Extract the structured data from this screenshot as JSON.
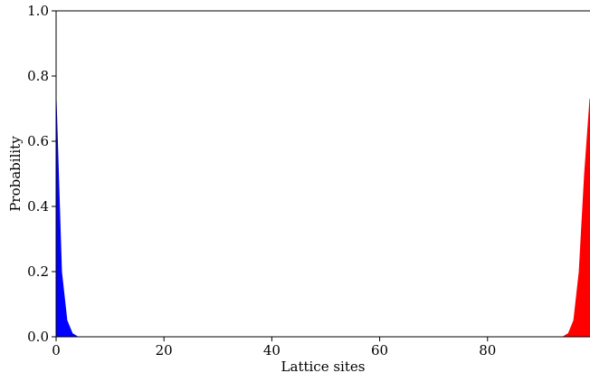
{
  "chart_data": {
    "type": "area",
    "title": "",
    "xlabel": "Lattice sites",
    "ylabel": "Probability",
    "xlim": [
      0,
      99
    ],
    "ylim": [
      0,
      1.0
    ],
    "x_ticks": [
      0,
      20,
      40,
      60,
      80
    ],
    "x_tick_labels": [
      "0",
      "20",
      "40",
      "60",
      "80"
    ],
    "y_ticks": [
      0.0,
      0.2,
      0.4,
      0.6,
      0.8,
      1.0
    ],
    "y_tick_labels": [
      "0.0",
      "0.2",
      "0.4",
      "0.6",
      "0.8",
      "1.0"
    ],
    "grid": false,
    "series": [
      {
        "color": "#0000ff",
        "x": [
          0,
          1,
          2,
          3,
          4,
          5,
          99
        ],
        "y": [
          0.73,
          0.2,
          0.05,
          0.01,
          0.0,
          0.0,
          0.0
        ]
      },
      {
        "color": "#ff0000",
        "x": [
          0,
          93,
          94,
          95,
          96,
          97,
          98,
          99
        ],
        "y": [
          0.0,
          0.0,
          0.0,
          0.01,
          0.05,
          0.2,
          0.5,
          0.73
        ]
      }
    ]
  }
}
